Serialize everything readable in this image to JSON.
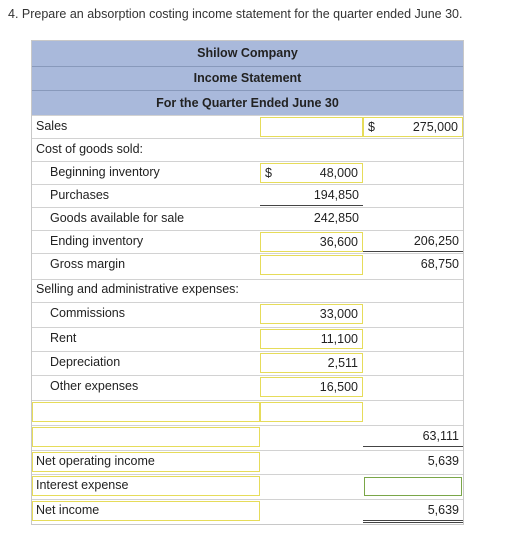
{
  "question": "4. Prepare an absorption costing income statement for the quarter ended June 30.",
  "statement": {
    "company": "Shilow Company",
    "title": "Income Statement",
    "period": "For the Quarter Ended June 30"
  },
  "rows": {
    "sales": {
      "label": "Sales",
      "dollar2": "$",
      "col2": "275,000"
    },
    "cogs": {
      "label": "Cost of goods sold:"
    },
    "beginning": {
      "label": "Beginning inventory",
      "dollar1": "$",
      "col1": "48,000"
    },
    "purchases": {
      "label": "Purchases",
      "col1": "194,850"
    },
    "available": {
      "label": "Goods available for sale",
      "col1": "242,850"
    },
    "ending": {
      "label": "Ending inventory",
      "col1": "36,600",
      "col2": "206,250"
    },
    "gross": {
      "label": "Gross margin",
      "col2": "68,750"
    },
    "selling": {
      "label": "Selling and administrative expenses:"
    },
    "commissions": {
      "label": "Commissions",
      "col1": "33,000"
    },
    "rent": {
      "label": "Rent",
      "col1": "11,100"
    },
    "depreciation": {
      "label": "Depreciation",
      "col1": "2,511"
    },
    "other": {
      "label": "Other expenses",
      "col1": "16,500"
    },
    "total_sa": {
      "col2": "63,111"
    },
    "noi": {
      "label": "Net operating income",
      "col2": "5,639"
    },
    "interest": {
      "label": "Interest expense",
      "col2": ""
    },
    "net": {
      "label": "Net income",
      "col2": "5,639"
    }
  }
}
